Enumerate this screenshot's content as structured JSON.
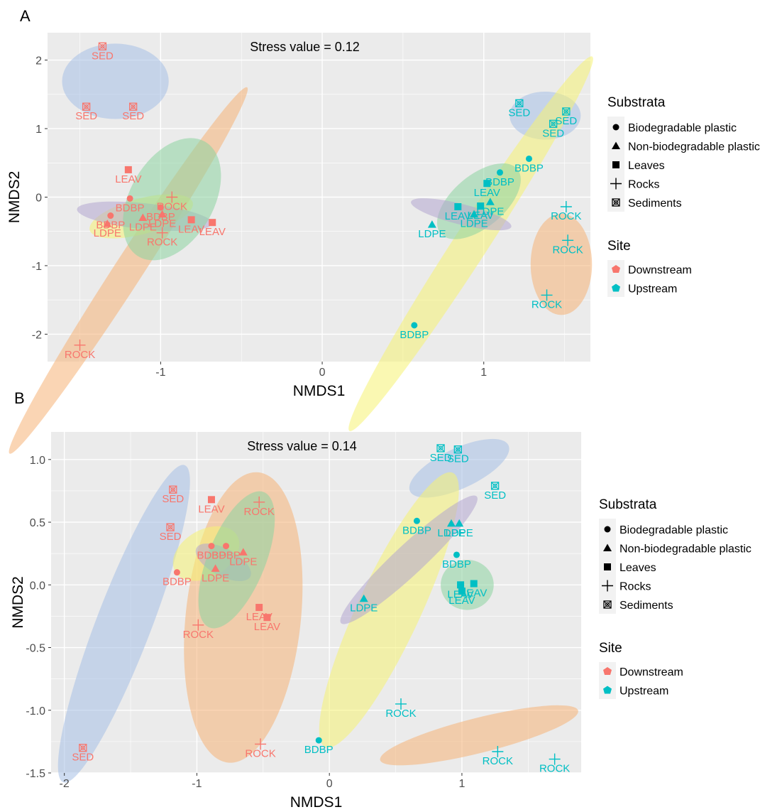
{
  "colors": {
    "panel_bg": "#ebebeb",
    "grid": "#ffffff",
    "downstream": "#f8766d",
    "upstream": "#00bfc4",
    "text": "#000000",
    "axis_text": "#4d4d4d",
    "ellipse_Biodegradable plastic": "#f5f272",
    "ellipse_Non-biodegradable plastic": "#b3a6cf",
    "ellipse_Leaves": "#8dd3a0",
    "ellipse_Rocks": "#f5b277",
    "ellipse_Sediments": "#a6bfe6"
  },
  "panel_labels": {
    "A": "A",
    "B": "B"
  },
  "chart_data": [
    {
      "type": "scatter",
      "panel": "A",
      "annotation": "Stress value = 0.12",
      "xlabel": "NMDS1",
      "ylabel": "NMDS2",
      "xlim": [
        -1.7,
        1.66
      ],
      "ylim": [
        -2.4,
        2.4
      ],
      "x_ticks": [
        -1,
        0,
        1
      ],
      "x_tick_labels": [
        "-1",
        "0",
        "1"
      ],
      "y_ticks": [
        -2,
        -1,
        0,
        1,
        2
      ],
      "y_tick_labels": [
        "-2",
        "-1",
        "0",
        "1",
        "2"
      ],
      "grid": true,
      "legend_position": "right",
      "legend": {
        "substrata_title": "Substrata",
        "substrata": [
          "Biodegradable plastic",
          "Non-biodegradable plastic",
          "Leaves",
          "Rocks",
          "Sediments"
        ],
        "site_title": "Site",
        "sites": [
          "Downstream",
          "Upstream"
        ]
      },
      "ellipses": [
        {
          "substrate": "Sediments",
          "site": "Downstream",
          "cx": -1.28,
          "cy": 1.69,
          "rx": 0.33,
          "ry": 0.55,
          "angle": 0
        },
        {
          "substrate": "Rocks",
          "site": "Downstream",
          "cx": -1.2,
          "cy": -1.07,
          "rx": 1.35,
          "ry": 0.21,
          "angle": -57
        },
        {
          "substrate": "Biodegradable plastic",
          "site": "Downstream",
          "cx": -1.12,
          "cy": -0.28,
          "rx": 0.33,
          "ry": 0.26,
          "angle": -15
        },
        {
          "substrate": "Non-biodegradable plastic",
          "site": "Downstream",
          "cx": -1.1,
          "cy": -0.28,
          "rx": 0.42,
          "ry": 0.19,
          "angle": 6
        },
        {
          "substrate": "Leaves",
          "site": "Downstream",
          "cx": -0.93,
          "cy": -0.03,
          "rx": 0.41,
          "ry": 0.61,
          "angle": -60
        },
        {
          "substrate": "Sediments",
          "site": "Upstream",
          "cx": 1.38,
          "cy": 1.19,
          "rx": 0.22,
          "ry": 0.35,
          "angle": 0
        },
        {
          "substrate": "Biodegradable plastic",
          "site": "Upstream",
          "cx": 0.92,
          "cy": -0.68,
          "rx": 1.38,
          "ry": 0.25,
          "angle": -57
        },
        {
          "substrate": "Leaves",
          "site": "Upstream",
          "cx": 0.97,
          "cy": -0.06,
          "rx": 0.31,
          "ry": 0.38,
          "angle": -40
        },
        {
          "substrate": "Non-biodegradable plastic",
          "site": "Upstream",
          "cx": 0.86,
          "cy": -0.25,
          "rx": 0.32,
          "ry": 0.15,
          "angle": 14
        },
        {
          "substrate": "Rocks",
          "site": "Upstream",
          "cx": 1.48,
          "cy": -0.98,
          "rx": 0.19,
          "ry": 0.74,
          "angle": 0
        }
      ],
      "points": [
        {
          "x": -1.36,
          "y": 2.2,
          "substrate": "Sediments",
          "site": "Downstream",
          "label": "SED"
        },
        {
          "x": -1.46,
          "y": 1.32,
          "substrate": "Sediments",
          "site": "Downstream",
          "label": "SED"
        },
        {
          "x": -1.17,
          "y": 1.32,
          "substrate": "Sediments",
          "site": "Downstream",
          "label": "SED"
        },
        {
          "x": -1.2,
          "y": 0.4,
          "substrate": "Leaves",
          "site": "Downstream",
          "label": "LEAV"
        },
        {
          "x": -1.19,
          "y": -0.02,
          "substrate": "Biodegradable plastic",
          "site": "Downstream",
          "label": "BDBP"
        },
        {
          "x": -1.0,
          "y": -0.15,
          "substrate": "Biodegradable plastic",
          "site": "Downstream",
          "label": "BDBP"
        },
        {
          "x": -1.31,
          "y": -0.27,
          "substrate": "Biodegradable plastic",
          "site": "Downstream",
          "label": "BDBP"
        },
        {
          "x": -1.33,
          "y": -0.39,
          "substrate": "Non-biodegradable plastic",
          "site": "Downstream",
          "label": "LDPE"
        },
        {
          "x": -1.11,
          "y": -0.3,
          "substrate": "Non-biodegradable plastic",
          "site": "Downstream",
          "label": "LDPE"
        },
        {
          "x": -0.99,
          "y": -0.25,
          "substrate": "Non-biodegradable plastic",
          "site": "Downstream",
          "label": "LDPE"
        },
        {
          "x": -0.93,
          "y": 0.0,
          "substrate": "Rocks",
          "site": "Downstream",
          "label": "ROCK"
        },
        {
          "x": -0.99,
          "y": -0.52,
          "substrate": "Rocks",
          "site": "Downstream",
          "label": "ROCK"
        },
        {
          "x": -0.81,
          "y": -0.33,
          "substrate": "Leaves",
          "site": "Downstream",
          "label": "LEAV"
        },
        {
          "x": -0.68,
          "y": -0.37,
          "substrate": "Leaves",
          "site": "Downstream",
          "label": "LEAV"
        },
        {
          "x": -1.5,
          "y": -2.16,
          "substrate": "Rocks",
          "site": "Downstream",
          "label": "ROCK"
        },
        {
          "x": 1.22,
          "y": 1.37,
          "substrate": "Sediments",
          "site": "Upstream",
          "label": "SED"
        },
        {
          "x": 1.51,
          "y": 1.25,
          "substrate": "Sediments",
          "site": "Upstream",
          "label": "SED"
        },
        {
          "x": 1.43,
          "y": 1.07,
          "substrate": "Sediments",
          "site": "Upstream",
          "label": "SED"
        },
        {
          "x": 1.28,
          "y": 0.56,
          "substrate": "Biodegradable plastic",
          "site": "Upstream",
          "label": "BDBP"
        },
        {
          "x": 1.1,
          "y": 0.36,
          "substrate": "Biodegradable plastic",
          "site": "Upstream",
          "label": "BDBP"
        },
        {
          "x": 1.02,
          "y": 0.2,
          "substrate": "Leaves",
          "site": "Upstream",
          "label": "LEAV"
        },
        {
          "x": 0.84,
          "y": -0.14,
          "substrate": "Leaves",
          "site": "Upstream",
          "label": "LEAV"
        },
        {
          "x": 0.98,
          "y": -0.13,
          "substrate": "Leaves",
          "site": "Upstream",
          "label": "LEAV"
        },
        {
          "x": 0.94,
          "y": -0.25,
          "substrate": "Non-biodegradable plastic",
          "site": "Upstream",
          "label": "LDPE"
        },
        {
          "x": 1.04,
          "y": -0.07,
          "substrate": "Non-biodegradable plastic",
          "site": "Upstream",
          "label": "LDPE"
        },
        {
          "x": 0.68,
          "y": -0.4,
          "substrate": "Non-biodegradable plastic",
          "site": "Upstream",
          "label": "LDPE"
        },
        {
          "x": 1.51,
          "y": -0.14,
          "substrate": "Rocks",
          "site": "Upstream",
          "label": "ROCK"
        },
        {
          "x": 1.52,
          "y": -0.63,
          "substrate": "Rocks",
          "site": "Upstream",
          "label": "ROCK"
        },
        {
          "x": 1.39,
          "y": -1.43,
          "substrate": "Rocks",
          "site": "Upstream",
          "label": "ROCK"
        },
        {
          "x": 0.57,
          "y": -1.87,
          "substrate": "Biodegradable plastic",
          "site": "Upstream",
          "label": "BDBP"
        }
      ]
    },
    {
      "type": "scatter",
      "panel": "B",
      "annotation": "Stress value = 0.14",
      "xlabel": "NMDS1",
      "ylabel": "NMDS2",
      "xlim": [
        -2.1,
        1.9
      ],
      "ylim": [
        -1.5,
        1.22
      ],
      "x_ticks": [
        -2,
        -1,
        0,
        1
      ],
      "x_tick_labels": [
        "-2",
        "-1",
        "0",
        "1"
      ],
      "y_ticks": [
        -1.5,
        -1.0,
        -0.5,
        0.0,
        0.5,
        1.0
      ],
      "y_tick_labels": [
        "-1.5",
        "-1.0",
        "-0.5",
        "0.0",
        "0.5",
        "1.0"
      ],
      "grid": true,
      "legend_position": "right",
      "legend": {
        "substrata_title": "Substrata",
        "substrata": [
          "Biodegradable plastic",
          "Non-biodegradable plastic",
          "Leaves",
          "Rocks",
          "Sediments"
        ],
        "site_title": "Site",
        "sites": [
          "Downstream",
          "Upstream"
        ]
      },
      "ellipses": [
        {
          "substrate": "Sediments",
          "site": "Downstream",
          "cx": -1.55,
          "cy": -0.31,
          "rx": 1.28,
          "ry": 0.22,
          "angle": -69
        },
        {
          "substrate": "Rocks",
          "site": "Downstream",
          "cx": -0.65,
          "cy": -0.26,
          "rx": 1.1,
          "ry": 0.46,
          "angle": -84
        },
        {
          "substrate": "Biodegradable plastic",
          "site": "Downstream",
          "cx": -0.93,
          "cy": 0.25,
          "rx": 0.27,
          "ry": 0.19,
          "angle": -30
        },
        {
          "substrate": "Non-biodegradable plastic",
          "site": "Downstream",
          "cx": -0.8,
          "cy": 0.18,
          "rx": 0.23,
          "ry": 0.11,
          "angle": 28
        },
        {
          "substrate": "Leaves",
          "site": "Downstream",
          "cx": -0.7,
          "cy": 0.2,
          "rx": 0.55,
          "ry": 0.23,
          "angle": -68
        },
        {
          "substrate": "Sediments",
          "site": "Upstream",
          "cx": 0.98,
          "cy": 0.93,
          "rx": 0.41,
          "ry": 0.16,
          "angle": -25
        },
        {
          "substrate": "Biodegradable plastic",
          "site": "Upstream",
          "cx": 0.45,
          "cy": -0.2,
          "rx": 1.14,
          "ry": 0.25,
          "angle": -65
        },
        {
          "substrate": "Non-biodegradable plastic",
          "site": "Upstream",
          "cx": 0.6,
          "cy": 0.2,
          "rx": 0.7,
          "ry": 0.12,
          "angle": -43
        },
        {
          "substrate": "Leaves",
          "site": "Upstream",
          "cx": 1.04,
          "cy": 0.0,
          "rx": 0.2,
          "ry": 0.2,
          "angle": 0
        },
        {
          "substrate": "Rocks",
          "site": "Upstream",
          "cx": 1.13,
          "cy": -1.2,
          "rx": 0.77,
          "ry": 0.14,
          "angle": -14
        }
      ],
      "points": [
        {
          "x": -1.18,
          "y": 0.76,
          "substrate": "Sediments",
          "site": "Downstream",
          "label": "SED"
        },
        {
          "x": -1.2,
          "y": 0.46,
          "substrate": "Sediments",
          "site": "Downstream",
          "label": "SED"
        },
        {
          "x": -1.86,
          "y": -1.3,
          "substrate": "Sediments",
          "site": "Downstream",
          "label": "SED"
        },
        {
          "x": -0.89,
          "y": 0.68,
          "substrate": "Leaves",
          "site": "Downstream",
          "label": "LEAV"
        },
        {
          "x": -0.53,
          "y": 0.66,
          "substrate": "Rocks",
          "site": "Downstream",
          "label": "ROCK"
        },
        {
          "x": -0.89,
          "y": 0.31,
          "substrate": "Biodegradable plastic",
          "site": "Downstream",
          "label": "BDBP"
        },
        {
          "x": -0.78,
          "y": 0.31,
          "substrate": "Biodegradable plastic",
          "site": "Downstream",
          "label": "BDBP"
        },
        {
          "x": -1.15,
          "y": 0.1,
          "substrate": "Biodegradable plastic",
          "site": "Downstream",
          "label": "BDBP"
        },
        {
          "x": -0.86,
          "y": 0.13,
          "substrate": "Non-biodegradable plastic",
          "site": "Downstream",
          "label": "LDPE"
        },
        {
          "x": -0.65,
          "y": 0.26,
          "substrate": "Non-biodegradable plastic",
          "site": "Downstream",
          "label": "LDPE"
        },
        {
          "x": -0.53,
          "y": -0.18,
          "substrate": "Leaves",
          "site": "Downstream",
          "label": "LEAV"
        },
        {
          "x": -0.47,
          "y": -0.26,
          "substrate": "Leaves",
          "site": "Downstream",
          "label": "LEAV"
        },
        {
          "x": -0.99,
          "y": -0.32,
          "substrate": "Rocks",
          "site": "Downstream",
          "label": "ROCK"
        },
        {
          "x": -0.52,
          "y": -1.27,
          "substrate": "Rocks",
          "site": "Downstream",
          "label": "ROCK"
        },
        {
          "x": 0.84,
          "y": 1.09,
          "substrate": "Sediments",
          "site": "Upstream",
          "label": "SED"
        },
        {
          "x": 0.97,
          "y": 1.08,
          "substrate": "Sediments",
          "site": "Upstream",
          "label": "SED"
        },
        {
          "x": 1.25,
          "y": 0.79,
          "substrate": "Sediments",
          "site": "Upstream",
          "label": "SED"
        },
        {
          "x": 0.66,
          "y": 0.51,
          "substrate": "Biodegradable plastic",
          "site": "Upstream",
          "label": "BDBP"
        },
        {
          "x": 0.92,
          "y": 0.49,
          "substrate": "Non-biodegradable plastic",
          "site": "Upstream",
          "label": "LDPE"
        },
        {
          "x": 0.98,
          "y": 0.49,
          "substrate": "Non-biodegradable plastic",
          "site": "Upstream",
          "label": "LDPE"
        },
        {
          "x": 0.96,
          "y": 0.24,
          "substrate": "Biodegradable plastic",
          "site": "Upstream",
          "label": "BDBP"
        },
        {
          "x": 0.99,
          "y": 0.0,
          "substrate": "Leaves",
          "site": "Upstream",
          "label": "LEAV"
        },
        {
          "x": 1.09,
          "y": 0.01,
          "substrate": "Leaves",
          "site": "Upstream",
          "label": "LEAV"
        },
        {
          "x": 1.0,
          "y": -0.05,
          "substrate": "Leaves",
          "site": "Upstream",
          "label": "LEAV"
        },
        {
          "x": 0.26,
          "y": -0.11,
          "substrate": "Non-biodegradable plastic",
          "site": "Upstream",
          "label": "LDPE"
        },
        {
          "x": 0.54,
          "y": -0.95,
          "substrate": "Rocks",
          "site": "Upstream",
          "label": "ROCK"
        },
        {
          "x": 1.27,
          "y": -1.33,
          "substrate": "Rocks",
          "site": "Upstream",
          "label": "ROCK"
        },
        {
          "x": 1.7,
          "y": -1.39,
          "substrate": "Rocks",
          "site": "Upstream",
          "label": "ROCK"
        },
        {
          "x": -0.08,
          "y": -1.24,
          "substrate": "Biodegradable plastic",
          "site": "Upstream",
          "label": "BDBP"
        }
      ]
    }
  ]
}
